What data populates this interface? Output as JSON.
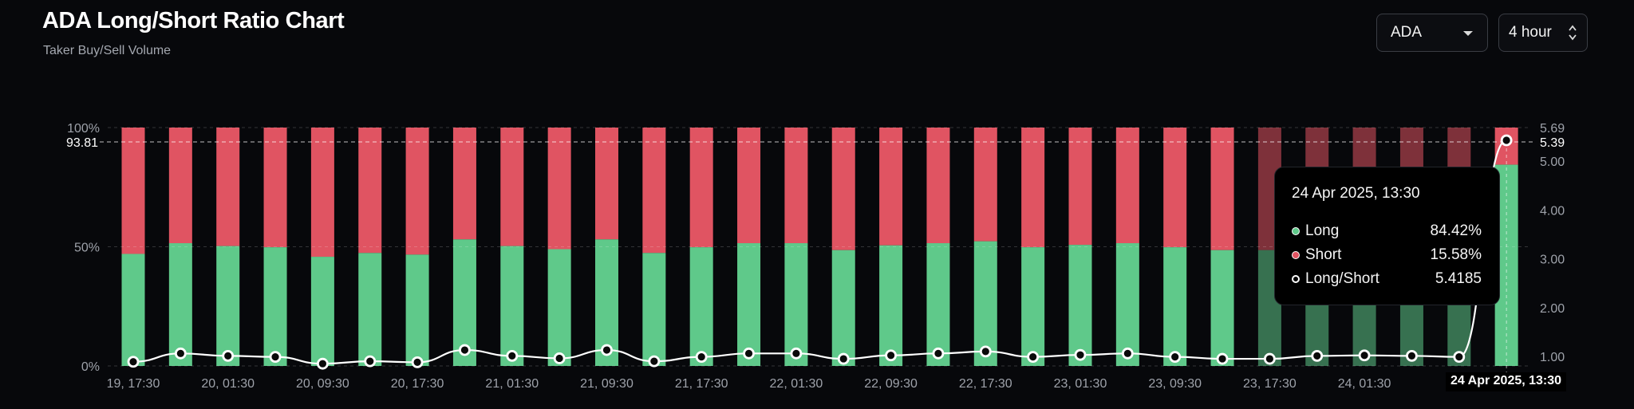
{
  "header": {
    "title": "ADA Long/Short Ratio Chart",
    "subtitle": "Taker Buy/Sell Volume"
  },
  "controls": {
    "asset": "ADA",
    "interval": "4 hour"
  },
  "tooltip": {
    "date": "24 Apr 2025, 13:30",
    "rows": [
      {
        "label": "Long",
        "value": "84.42%"
      },
      {
        "label": "Short",
        "value": "15.58%"
      },
      {
        "label": "Long/Short",
        "value": "5.4185"
      }
    ]
  },
  "crosshair": {
    "left_value": "93.81",
    "right_value": "5.39",
    "x_label": "24 Apr 2025, 13:30"
  },
  "colors": {
    "long": "#5fc98a",
    "short": "#e05462",
    "ratio_line": "#ffffff",
    "background": "#07080b"
  },
  "chart_data": {
    "type": "bar",
    "stacked": true,
    "percent_axis": {
      "ticks": [
        "0%",
        "50%",
        "100%"
      ],
      "ylim": [
        0,
        100
      ]
    },
    "ratio_axis": {
      "ticks": [
        "1.00",
        "2.00",
        "3.00",
        "4.00",
        "5.00",
        "5.69"
      ],
      "ylim": [
        0.8,
        5.69
      ]
    },
    "x_tick_labels": [
      "19, 17:30",
      "20, 01:30",
      "20, 09:30",
      "20, 17:30",
      "21, 01:30",
      "21, 09:30",
      "21, 17:30",
      "22, 01:30",
      "22, 09:30",
      "22, 17:30",
      "23, 01:30",
      "23, 09:30",
      "23, 17:30",
      "24, 01:30",
      "24"
    ],
    "long_pct": [
      47,
      51.5,
      50.3,
      49.8,
      45.8,
      47.4,
      46.7,
      53.1,
      50.3,
      49,
      53.1,
      47.4,
      49.8,
      51.5,
      51.5,
      48.6,
      50.6,
      51.5,
      52.3,
      49.8,
      50.8,
      51.5,
      49.8,
      48.6,
      48.6,
      50.3,
      50.6,
      50.3,
      49.8,
      84.42
    ],
    "short_pct": [
      53,
      48.5,
      49.7,
      50.2,
      54.2,
      52.6,
      53.3,
      46.9,
      49.7,
      51,
      46.9,
      52.6,
      50.2,
      48.5,
      48.5,
      51.4,
      49.4,
      48.5,
      47.7,
      50.2,
      49.2,
      48.5,
      50.2,
      51.4,
      51.4,
      49.7,
      49.4,
      49.7,
      50.2,
      15.58
    ],
    "long_short_ratio": [
      0.89,
      1.06,
      1.01,
      0.99,
      0.85,
      0.9,
      0.88,
      1.13,
      1.01,
      0.96,
      1.13,
      0.9,
      0.99,
      1.06,
      1.06,
      0.95,
      1.02,
      1.06,
      1.1,
      0.99,
      1.03,
      1.06,
      0.99,
      0.95,
      0.95,
      1.01,
      1.02,
      1.01,
      0.99,
      5.4185
    ],
    "series": [
      {
        "name": "Long",
        "color": "#5fc98a"
      },
      {
        "name": "Short",
        "color": "#e05462"
      },
      {
        "name": "Long/Short",
        "color": "#ffffff"
      }
    ],
    "title": "ADA Long/Short Ratio Chart",
    "subtitle": "Taker Buy/Sell Volume",
    "highlighted_index": 29
  }
}
